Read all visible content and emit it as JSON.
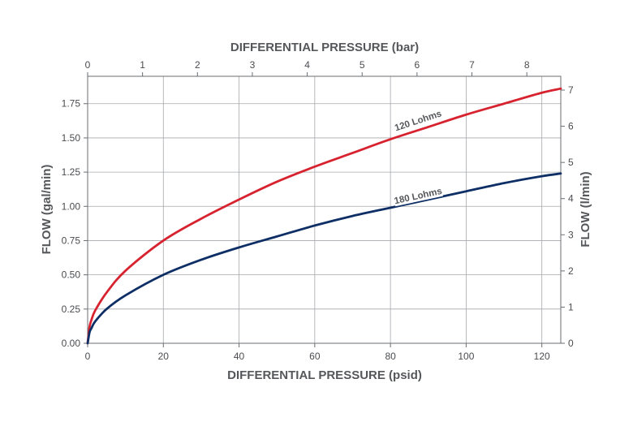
{
  "chart_data": {
    "type": "line",
    "title": "",
    "xlabel": "DIFFERENTIAL PRESSURE (psid)",
    "x2label": "DIFFERENTIAL PRESSURE (bar)",
    "ylabel": "FLOW (gal/min)",
    "y2label": "FLOW (l/min)",
    "xlim": [
      0,
      125
    ],
    "ylim": [
      0,
      1.95
    ],
    "x_ticks": [
      "0",
      "20",
      "40",
      "60",
      "80",
      "100",
      "120"
    ],
    "x2_ticks": [
      "0",
      "1",
      "2",
      "3",
      "4",
      "5",
      "6",
      "7",
      "8"
    ],
    "y_ticks": [
      "0.00",
      "0.25",
      "0.50",
      "0.75",
      "1.00",
      "1.25",
      "1.50",
      "1.75"
    ],
    "y2_ticks": [
      "0",
      "1",
      "2",
      "3",
      "4",
      "5",
      "6",
      "7"
    ],
    "grid": true,
    "x": [
      0,
      0.5,
      1,
      2,
      5,
      10,
      20,
      30,
      40,
      50,
      60,
      70,
      80,
      90,
      100,
      110,
      120,
      125
    ],
    "series": [
      {
        "name": "120 Lohms",
        "color": "#d7232f",
        "values": [
          0,
          0.12,
          0.17,
          0.24,
          0.37,
          0.53,
          0.75,
          0.91,
          1.05,
          1.18,
          1.29,
          1.39,
          1.49,
          1.58,
          1.67,
          1.75,
          1.83,
          1.86
        ]
      },
      {
        "name": "180 Lohms",
        "color": "#0e2f66",
        "values": [
          0,
          0.08,
          0.11,
          0.16,
          0.25,
          0.35,
          0.5,
          0.61,
          0.7,
          0.78,
          0.86,
          0.93,
          0.99,
          1.05,
          1.11,
          1.17,
          1.22,
          1.24
        ]
      }
    ]
  }
}
